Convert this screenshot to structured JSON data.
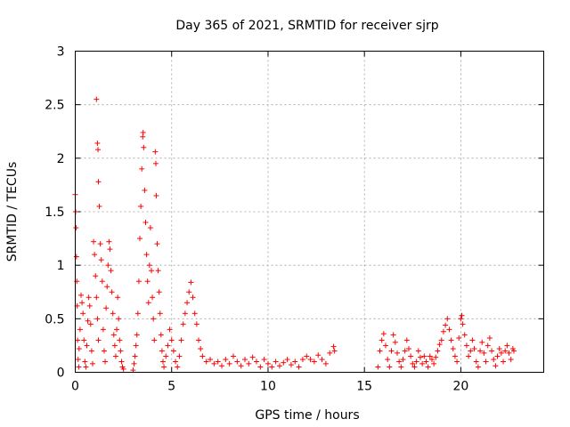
{
  "chart_data": {
    "type": "scatter",
    "title": "Day 365 of 2021, SRMTID for receiver sjrp",
    "xlabel": "GPS time / hours",
    "ylabel": "SRMTID / TECUs",
    "xlim": [
      0,
      24.3
    ],
    "ylim": [
      0,
      3
    ],
    "xticks": [
      0,
      5,
      10,
      15,
      20
    ],
    "xtick_labels": [
      "0",
      "5",
      "10",
      "15",
      "20"
    ],
    "yticks": [
      0,
      0.5,
      1,
      1.5,
      2,
      2.5,
      3
    ],
    "ytick_labels": [
      "0",
      "0.5",
      "1",
      "1.5",
      "2",
      "2.5",
      "3"
    ],
    "grid": true,
    "marker": "plus",
    "color": "#ff0000",
    "series": [
      {
        "name": "SRMTID",
        "points": [
          [
            0.0,
            1.66
          ],
          [
            0.02,
            1.5
          ],
          [
            0.04,
            1.35
          ],
          [
            0.06,
            1.08
          ],
          [
            0.08,
            0.85
          ],
          [
            0.1,
            0.62
          ],
          [
            0.12,
            0.3
          ],
          [
            0.15,
            0.12
          ],
          [
            0.18,
            0.05
          ],
          [
            0.2,
            0.22
          ],
          [
            0.25,
            0.4
          ],
          [
            0.3,
            0.72
          ],
          [
            0.35,
            0.65
          ],
          [
            0.4,
            0.55
          ],
          [
            0.45,
            0.3
          ],
          [
            0.5,
            0.1
          ],
          [
            0.55,
            0.05
          ],
          [
            0.6,
            0.25
          ],
          [
            0.65,
            0.48
          ],
          [
            0.7,
            0.7
          ],
          [
            0.75,
            0.62
          ],
          [
            0.8,
            0.45
          ],
          [
            0.85,
            0.2
          ],
          [
            0.9,
            0.08
          ],
          [
            0.95,
            1.22
          ],
          [
            1.0,
            1.1
          ],
          [
            1.05,
            0.9
          ],
          [
            1.1,
            0.7
          ],
          [
            1.15,
            0.5
          ],
          [
            1.2,
            0.3
          ],
          [
            1.1,
            2.55
          ],
          [
            1.15,
            2.14
          ],
          [
            1.18,
            2.08
          ],
          [
            1.2,
            1.78
          ],
          [
            1.25,
            1.55
          ],
          [
            1.3,
            1.2
          ],
          [
            1.35,
            1.05
          ],
          [
            1.4,
            0.85
          ],
          [
            1.45,
            0.4
          ],
          [
            1.5,
            0.2
          ],
          [
            1.55,
            0.1
          ],
          [
            1.6,
            0.6
          ],
          [
            1.65,
            0.8
          ],
          [
            1.7,
            1.0
          ],
          [
            1.75,
            1.22
          ],
          [
            1.8,
            1.15
          ],
          [
            1.85,
            0.95
          ],
          [
            1.9,
            0.75
          ],
          [
            1.95,
            0.55
          ],
          [
            2.0,
            0.35
          ],
          [
            2.05,
            0.25
          ],
          [
            2.1,
            0.15
          ],
          [
            2.15,
            0.4
          ],
          [
            2.2,
            0.7
          ],
          [
            2.25,
            0.5
          ],
          [
            2.3,
            0.3
          ],
          [
            2.35,
            0.2
          ],
          [
            2.4,
            0.1
          ],
          [
            2.45,
            0.05
          ],
          [
            2.5,
            0.03
          ],
          [
            3.0,
            0.02
          ],
          [
            3.05,
            0.08
          ],
          [
            3.1,
            0.15
          ],
          [
            3.15,
            0.25
          ],
          [
            3.2,
            0.35
          ],
          [
            3.25,
            0.55
          ],
          [
            3.3,
            0.85
          ],
          [
            3.35,
            1.25
          ],
          [
            3.4,
            1.55
          ],
          [
            3.45,
            1.9
          ],
          [
            3.5,
            2.2
          ],
          [
            3.52,
            2.24
          ],
          [
            3.55,
            2.1
          ],
          [
            3.6,
            1.7
          ],
          [
            3.65,
            1.4
          ],
          [
            3.7,
            1.1
          ],
          [
            3.75,
            0.85
          ],
          [
            3.8,
            0.65
          ],
          [
            3.85,
            1.0
          ],
          [
            3.9,
            1.35
          ],
          [
            3.95,
            0.95
          ],
          [
            4.0,
            0.7
          ],
          [
            4.05,
            0.5
          ],
          [
            4.1,
            0.3
          ],
          [
            4.15,
            2.06
          ],
          [
            4.18,
            1.95
          ],
          [
            4.2,
            1.65
          ],
          [
            4.25,
            1.2
          ],
          [
            4.3,
            0.95
          ],
          [
            4.35,
            0.75
          ],
          [
            4.4,
            0.55
          ],
          [
            4.45,
            0.35
          ],
          [
            4.5,
            0.2
          ],
          [
            4.55,
            0.1
          ],
          [
            4.6,
            0.05
          ],
          [
            4.7,
            0.15
          ],
          [
            4.8,
            0.25
          ],
          [
            4.9,
            0.4
          ],
          [
            5.0,
            0.3
          ],
          [
            5.1,
            0.2
          ],
          [
            5.2,
            0.1
          ],
          [
            5.3,
            0.05
          ],
          [
            5.4,
            0.15
          ],
          [
            5.5,
            0.3
          ],
          [
            5.6,
            0.45
          ],
          [
            5.7,
            0.55
          ],
          [
            5.8,
            0.65
          ],
          [
            5.9,
            0.75
          ],
          [
            6.0,
            0.84
          ],
          [
            6.1,
            0.7
          ],
          [
            6.2,
            0.55
          ],
          [
            6.3,
            0.45
          ],
          [
            6.4,
            0.3
          ],
          [
            6.5,
            0.22
          ],
          [
            6.6,
            0.15
          ],
          [
            6.8,
            0.1
          ],
          [
            7.0,
            0.12
          ],
          [
            7.2,
            0.08
          ],
          [
            7.4,
            0.1
          ],
          [
            7.6,
            0.06
          ],
          [
            7.8,
            0.12
          ],
          [
            8.0,
            0.08
          ],
          [
            8.2,
            0.15
          ],
          [
            8.4,
            0.1
          ],
          [
            8.6,
            0.06
          ],
          [
            8.8,
            0.12
          ],
          [
            9.0,
            0.08
          ],
          [
            9.2,
            0.14
          ],
          [
            9.4,
            0.1
          ],
          [
            9.6,
            0.05
          ],
          [
            9.8,
            0.12
          ],
          [
            10.0,
            0.08
          ],
          [
            10.2,
            0.05
          ],
          [
            10.4,
            0.1
          ],
          [
            10.6,
            0.06
          ],
          [
            10.8,
            0.09
          ],
          [
            11.0,
            0.12
          ],
          [
            11.2,
            0.07
          ],
          [
            11.4,
            0.1
          ],
          [
            11.6,
            0.05
          ],
          [
            11.8,
            0.12
          ],
          [
            12.0,
            0.15
          ],
          [
            12.2,
            0.12
          ],
          [
            12.4,
            0.1
          ],
          [
            12.6,
            0.16
          ],
          [
            12.8,
            0.12
          ],
          [
            13.0,
            0.08
          ],
          [
            13.2,
            0.18
          ],
          [
            13.4,
            0.24
          ],
          [
            13.45,
            0.2
          ],
          [
            15.7,
            0.05
          ],
          [
            15.8,
            0.2
          ],
          [
            15.9,
            0.3
          ],
          [
            16.0,
            0.36
          ],
          [
            16.1,
            0.25
          ],
          [
            16.2,
            0.12
          ],
          [
            16.3,
            0.05
          ],
          [
            16.4,
            0.2
          ],
          [
            16.5,
            0.35
          ],
          [
            16.6,
            0.28
          ],
          [
            16.7,
            0.18
          ],
          [
            16.8,
            0.1
          ],
          [
            16.9,
            0.05
          ],
          [
            17.0,
            0.12
          ],
          [
            17.1,
            0.2
          ],
          [
            17.2,
            0.3
          ],
          [
            17.3,
            0.22
          ],
          [
            17.4,
            0.15
          ],
          [
            17.5,
            0.08
          ],
          [
            17.6,
            0.05
          ],
          [
            17.7,
            0.1
          ],
          [
            17.8,
            0.2
          ],
          [
            17.9,
            0.14
          ],
          [
            18.0,
            0.08
          ],
          [
            18.1,
            0.15
          ],
          [
            18.2,
            0.1
          ],
          [
            18.3,
            0.05
          ],
          [
            18.4,
            0.15
          ],
          [
            18.5,
            0.12
          ],
          [
            18.6,
            0.08
          ],
          [
            18.7,
            0.14
          ],
          [
            18.8,
            0.2
          ],
          [
            18.9,
            0.26
          ],
          [
            19.0,
            0.3
          ],
          [
            19.1,
            0.38
          ],
          [
            19.2,
            0.44
          ],
          [
            19.3,
            0.5
          ],
          [
            19.4,
            0.4
          ],
          [
            19.5,
            0.3
          ],
          [
            19.6,
            0.22
          ],
          [
            19.7,
            0.15
          ],
          [
            19.8,
            0.1
          ],
          [
            19.9,
            0.32
          ],
          [
            20.0,
            0.5
          ],
          [
            20.05,
            0.53
          ],
          [
            20.1,
            0.45
          ],
          [
            20.2,
            0.35
          ],
          [
            20.3,
            0.25
          ],
          [
            20.4,
            0.15
          ],
          [
            20.5,
            0.2
          ],
          [
            20.6,
            0.3
          ],
          [
            20.7,
            0.22
          ],
          [
            20.8,
            0.1
          ],
          [
            20.9,
            0.05
          ],
          [
            21.0,
            0.2
          ],
          [
            21.1,
            0.28
          ],
          [
            21.2,
            0.18
          ],
          [
            21.3,
            0.1
          ],
          [
            21.4,
            0.25
          ],
          [
            21.5,
            0.32
          ],
          [
            21.6,
            0.2
          ],
          [
            21.7,
            0.12
          ],
          [
            21.8,
            0.06
          ],
          [
            21.9,
            0.15
          ],
          [
            22.0,
            0.22
          ],
          [
            22.1,
            0.18
          ],
          [
            22.2,
            0.1
          ],
          [
            22.3,
            0.2
          ],
          [
            22.4,
            0.25
          ],
          [
            22.5,
            0.18
          ],
          [
            22.6,
            0.12
          ],
          [
            22.7,
            0.22
          ],
          [
            22.75,
            0.2
          ]
        ]
      }
    ]
  }
}
